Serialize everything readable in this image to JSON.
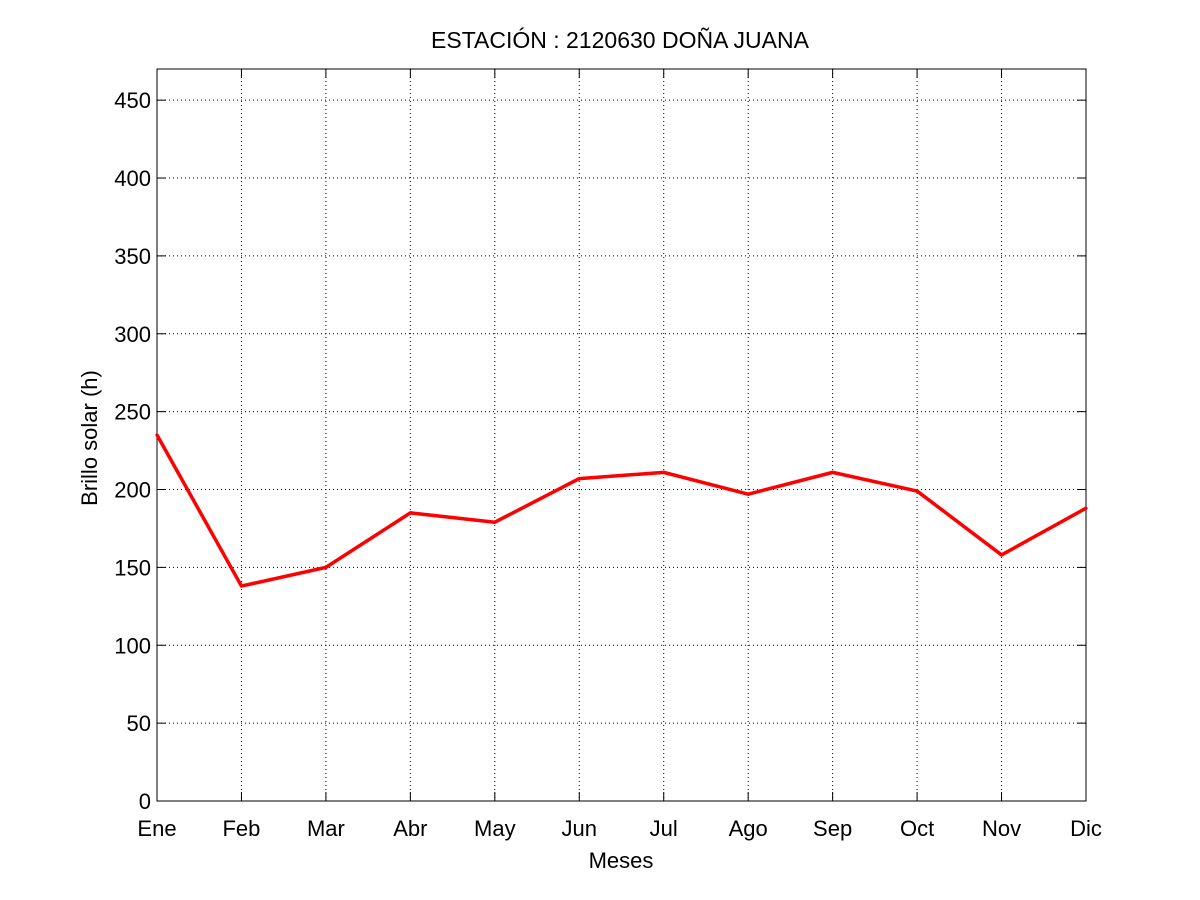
{
  "chart_data": {
    "type": "line",
    "title": "ESTACIÓN :  2120630  DOÑA JUANA",
    "xlabel": "Meses",
    "ylabel": "Brillo solar (h)",
    "categories": [
      "Ene",
      "Feb",
      "Mar",
      "Abr",
      "May",
      "Jun",
      "Jul",
      "Ago",
      "Sep",
      "Oct",
      "Nov",
      "Dic"
    ],
    "yticks": [
      "0",
      "50",
      "100",
      "150",
      "200",
      "250",
      "300",
      "350",
      "400",
      "450"
    ],
    "ylim": [
      0,
      470
    ],
    "grid": true,
    "series": [
      {
        "color": "#ff0000",
        "values": [
          235,
          138,
          150,
          185,
          179,
          207,
          211,
          197,
          211,
          199,
          158,
          188
        ]
      }
    ]
  }
}
